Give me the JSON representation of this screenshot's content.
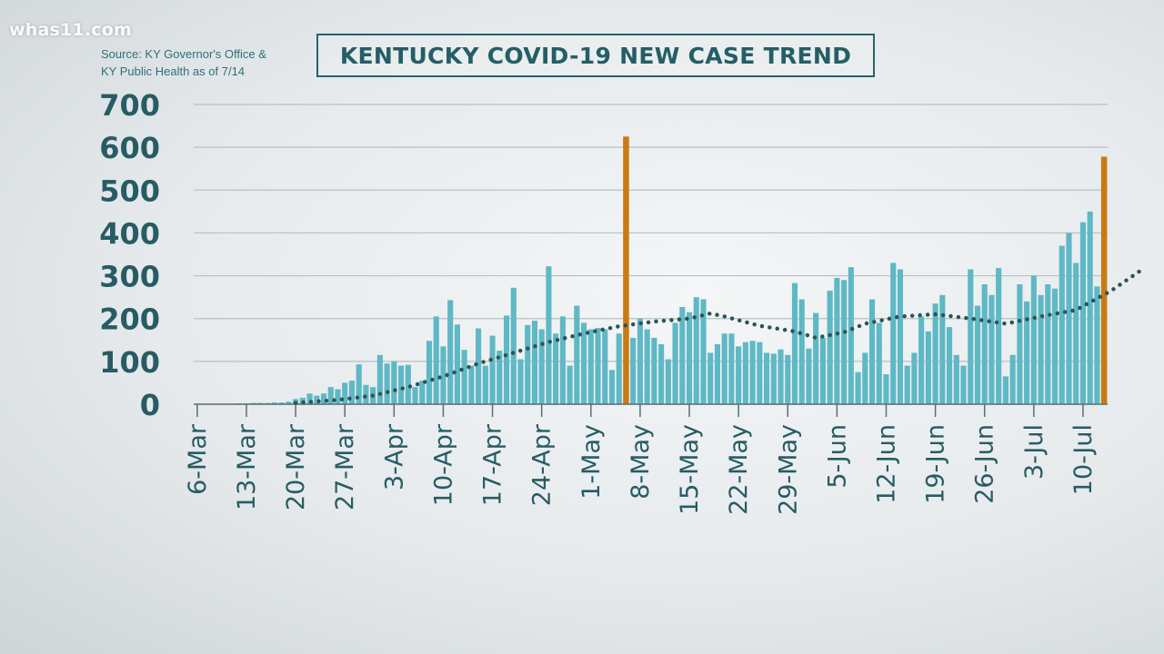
{
  "watermark": "whas11.com",
  "source": {
    "line1": "Source: KY Governor's Office &",
    "line2": "KY Public Health as of 7/14"
  },
  "colors": {
    "bar": "#5fb8c5",
    "highlight": "#c97a12",
    "trend": "#2d5458",
    "text": "#275c64",
    "grid": "#b7c0c4"
  },
  "chart_data": {
    "type": "bar",
    "title": "KENTUCKY COVID-19 NEW CASE TREND",
    "xlabel": "",
    "ylabel": "",
    "ylim": [
      0,
      700
    ],
    "y_ticks": [
      0,
      100,
      200,
      300,
      400,
      500,
      600,
      700
    ],
    "grid": true,
    "start_date": "6-Mar",
    "x_tick_labels": [
      "6-Mar",
      "13-Mar",
      "20-Mar",
      "27-Mar",
      "3-Apr",
      "10-Apr",
      "17-Apr",
      "24-Apr",
      "1-May",
      "8-May",
      "15-May",
      "22-May",
      "29-May",
      "5-Jun",
      "12-Jun",
      "19-Jun",
      "26-Jun",
      "3-Jul",
      "10-Jul"
    ],
    "values": [
      1,
      1,
      1,
      1,
      1,
      1,
      2,
      2,
      3,
      3,
      3,
      4,
      4,
      6,
      12,
      15,
      25,
      20,
      25,
      40,
      35,
      50,
      55,
      93,
      45,
      40,
      115,
      95,
      100,
      90,
      92,
      40,
      55,
      148,
      205,
      135,
      243,
      186,
      127,
      90,
      177,
      90,
      160,
      125,
      207,
      272,
      105,
      185,
      195,
      175,
      322,
      165,
      205,
      90,
      230,
      190,
      175,
      178,
      175,
      80,
      165,
      625,
      155,
      200,
      175,
      155,
      140,
      105,
      190,
      227,
      215,
      250,
      245,
      120,
      140,
      165,
      165,
      135,
      145,
      148,
      145,
      120,
      118,
      128,
      115,
      283,
      245,
      130,
      213,
      155,
      265,
      295,
      290,
      320,
      75,
      120,
      245,
      190,
      70,
      330,
      315,
      90,
      120,
      205,
      170,
      235,
      255,
      180,
      115,
      90,
      315,
      230,
      280,
      255,
      318,
      65,
      115,
      280,
      240,
      300,
      255,
      280,
      270,
      370,
      400,
      330,
      425,
      450,
      275,
      578
    ],
    "highlight_indices": [
      61,
      129
    ],
    "series": [
      {
        "name": "",
        "type": "dotted-line",
        "points": [
          [
            14,
            3
          ],
          [
            20,
            10
          ],
          [
            25,
            20
          ],
          [
            30,
            40
          ],
          [
            35,
            65
          ],
          [
            40,
            95
          ],
          [
            45,
            120
          ],
          [
            50,
            145
          ],
          [
            55,
            165
          ],
          [
            60,
            182
          ],
          [
            65,
            193
          ],
          [
            70,
            200
          ],
          [
            73,
            212
          ],
          [
            75,
            205
          ],
          [
            80,
            183
          ],
          [
            85,
            170
          ],
          [
            88,
            155
          ],
          [
            92,
            168
          ],
          [
            95,
            188
          ],
          [
            100,
            205
          ],
          [
            105,
            210
          ],
          [
            110,
            200
          ],
          [
            115,
            188
          ],
          [
            120,
            205
          ],
          [
            125,
            220
          ],
          [
            130,
            265
          ],
          [
            134,
            310
          ]
        ]
      }
    ]
  }
}
